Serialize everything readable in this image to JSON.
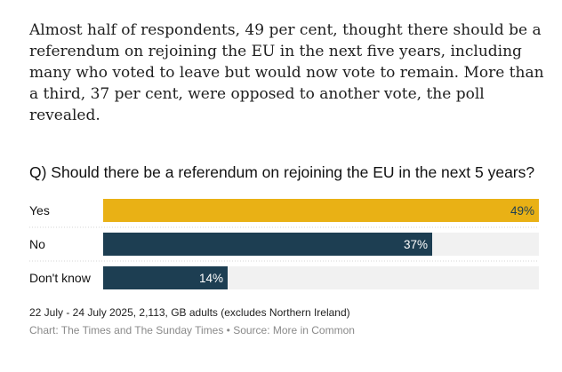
{
  "article": {
    "paragraph": "Almost half of respondents, 49 per cent, thought there should be a referendum on rejoining the EU in the next five years, including many who voted to leave but would now vote to remain. More than a third, 37 per cent, were opposed to another vote, the poll revealed."
  },
  "chart_data": {
    "type": "bar",
    "orientation": "horizontal",
    "title": "Q) Should there be a referendum on rejoining the EU in the next 5 years?",
    "categories": [
      "Yes",
      "No",
      "Don't know"
    ],
    "values": [
      49,
      37,
      14
    ],
    "value_labels": [
      "49%",
      "37%",
      "14%"
    ],
    "xlim": [
      0,
      49
    ],
    "colors": [
      "#e9b115",
      "#1d3e52",
      "#1d3e52"
    ],
    "track_color": "#f1f1f1",
    "grid": false,
    "legend": "none",
    "note": "22 July - 24 July 2025, 2,113, GB adults (excludes Northern Ireland)",
    "source": "Chart: The Times and The Sunday Times • Source: More in Common"
  }
}
